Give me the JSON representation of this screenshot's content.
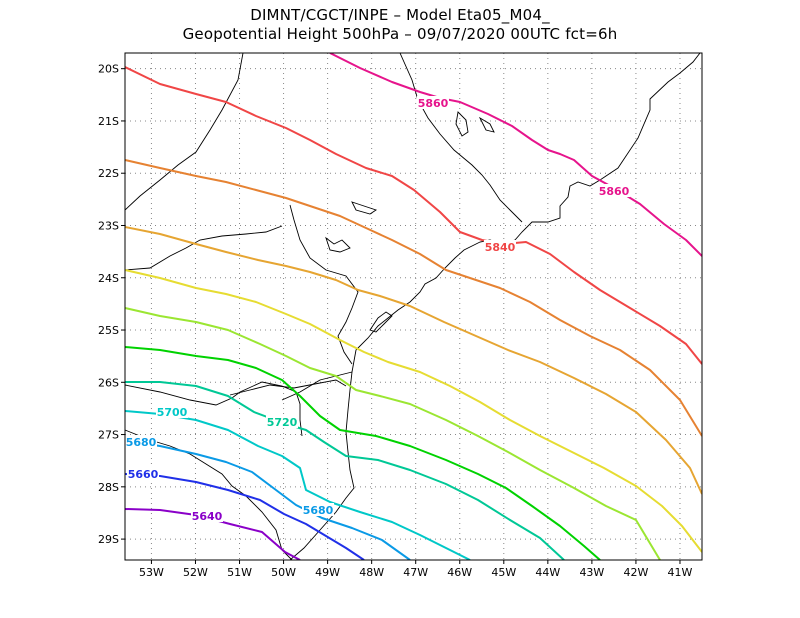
{
  "title": {
    "line1": "DIMNT/CGCT/INPE –  Model Eta05_M04_",
    "line2": "Geopotential Height 500hPa –  09/07/2020 00UTC fct=6h"
  },
  "map": {
    "lon_range": [
      -53.6,
      -40.5
    ],
    "lat_range": [
      -29.4,
      -19.7
    ],
    "lon_ticks": [
      "53W",
      "52W",
      "51W",
      "50W",
      "49W",
      "48W",
      "47W",
      "46W",
      "45W",
      "44W",
      "43W",
      "42W",
      "41W"
    ],
    "lat_ticks": [
      "20S",
      "21S",
      "22S",
      "23S",
      "24S",
      "25S",
      "26S",
      "27S",
      "28S",
      "29S"
    ],
    "gridlines": "dotted"
  },
  "contours": [
    {
      "value": 5640,
      "color": "#8a00c8"
    },
    {
      "value": 5660,
      "color": "#2030e8"
    },
    {
      "value": 5680,
      "color": "#0a9ae6"
    },
    {
      "value": 5700,
      "color": "#00c8c8"
    },
    {
      "value": 5720,
      "color": "#00c896"
    },
    {
      "value": 5740,
      "color": "#00d200"
    },
    {
      "value": 5760,
      "color": "#9be632"
    },
    {
      "value": 5780,
      "color": "#e6dc32"
    },
    {
      "value": 5800,
      "color": "#e6a532"
    },
    {
      "value": 5820,
      "color": "#e68232"
    },
    {
      "value": 5840,
      "color": "#f04646"
    },
    {
      "value": 5860,
      "color": "#e6148c"
    }
  ],
  "contour_labels": [
    {
      "text": "5860",
      "color": "#e6148c"
    },
    {
      "text": "5860",
      "color": "#e6148c"
    },
    {
      "text": "5840",
      "color": "#f04646"
    },
    {
      "text": "5720",
      "color": "#00c896"
    },
    {
      "text": "5700",
      "color": "#00c8c8"
    },
    {
      "text": "5680",
      "color": "#0a9ae6"
    },
    {
      "text": "5680",
      "color": "#0a9ae6"
    },
    {
      "text": "5660",
      "color": "#2030e8"
    },
    {
      "text": "5640",
      "color": "#8a00c8"
    }
  ]
}
